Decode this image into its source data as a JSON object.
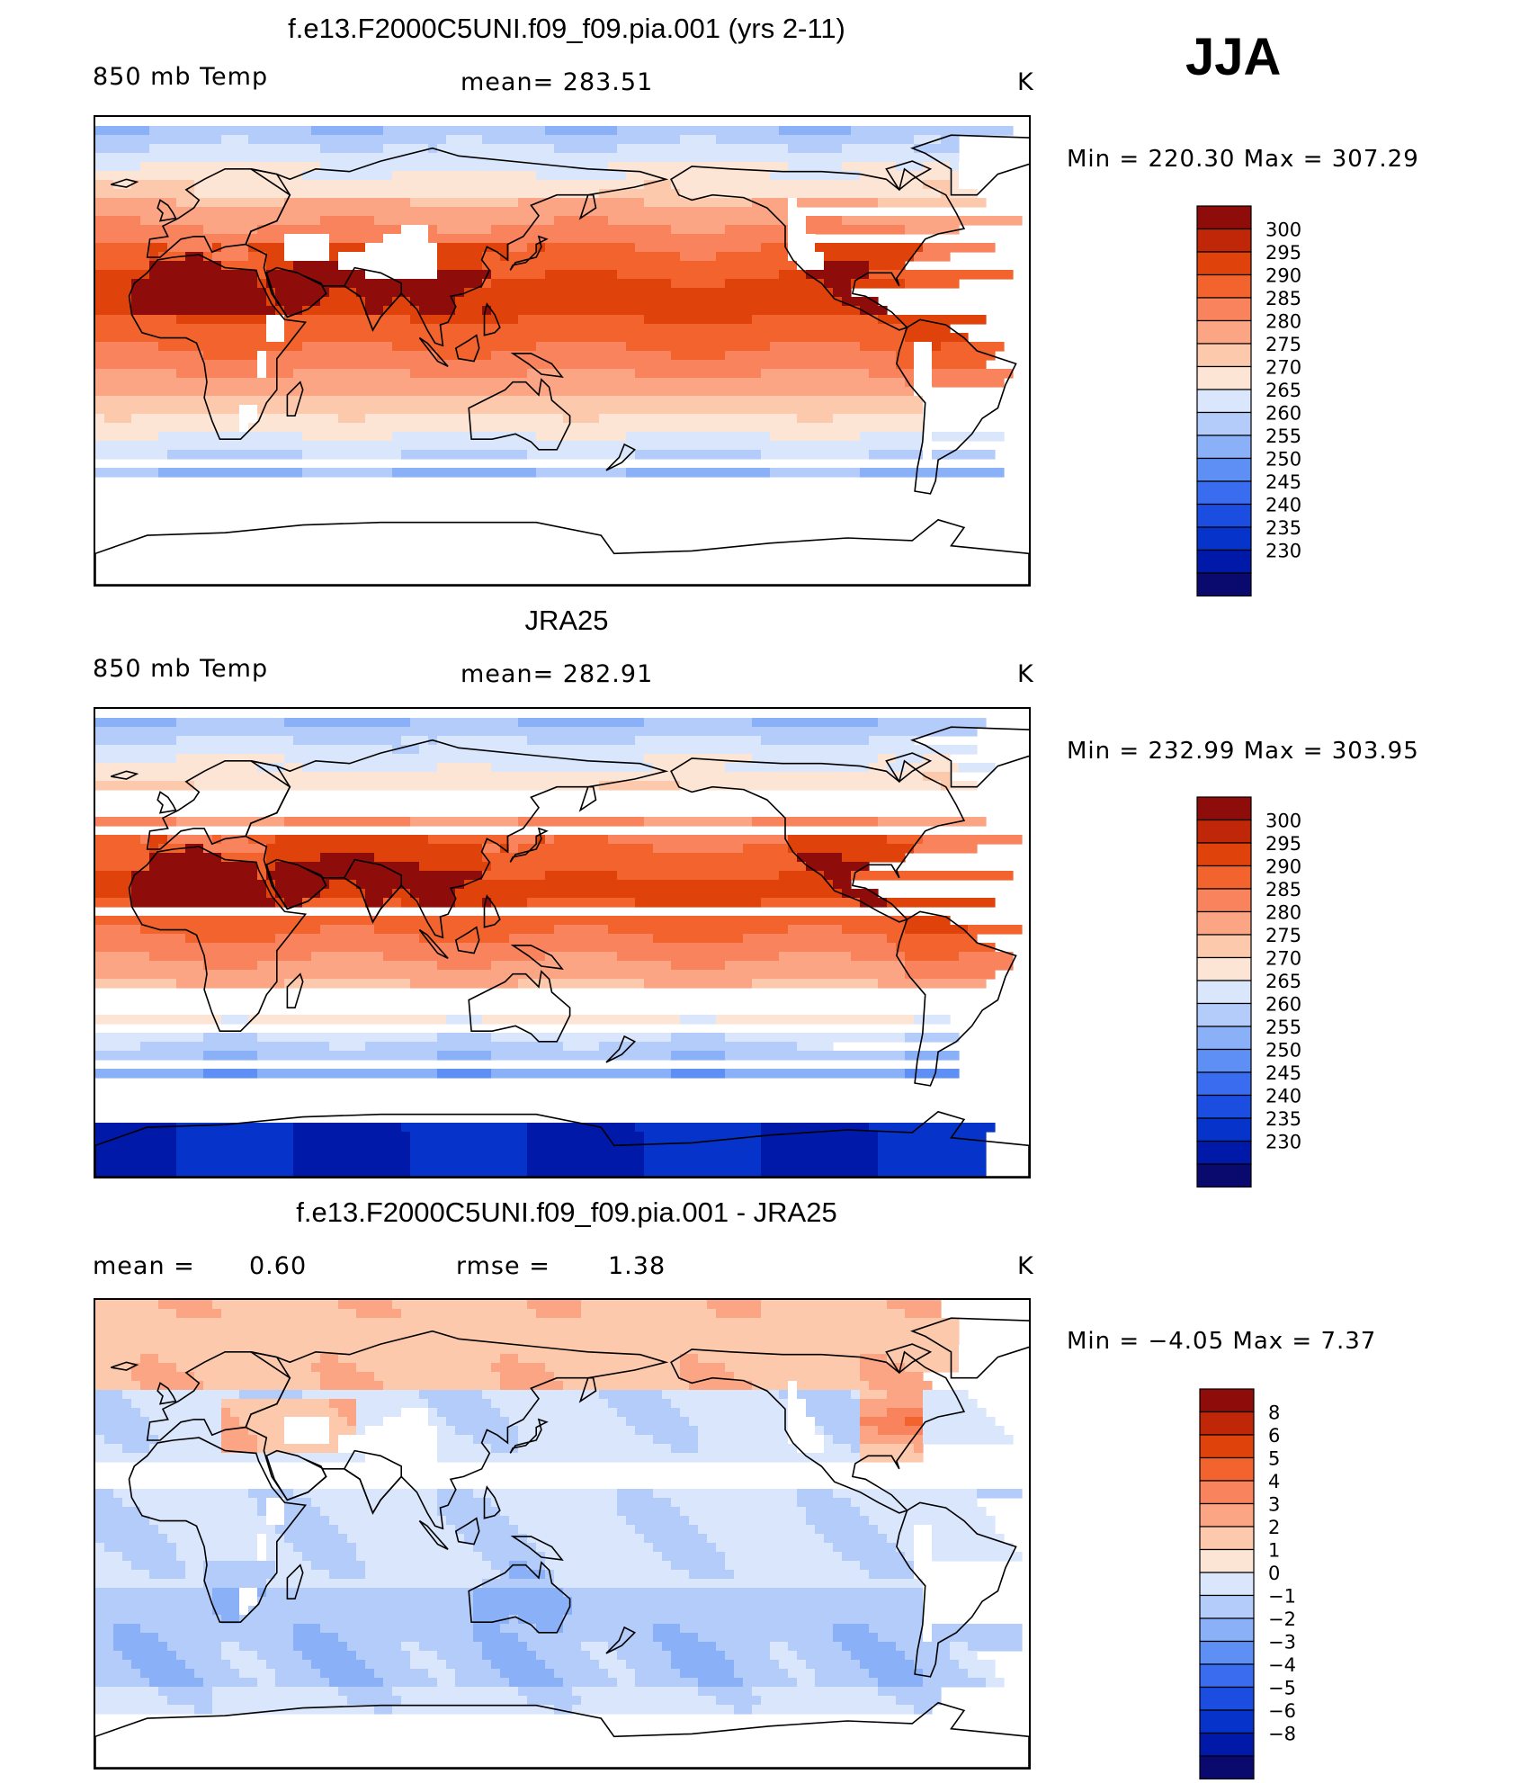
{
  "season": "JJA",
  "colors": {
    "abs": [
      "#0a0a6e",
      "#0019a8",
      "#0633c9",
      "#1a4de0",
      "#3a6cf0",
      "#5e8ff5",
      "#8ab0f7",
      "#b3ccfa",
      "#d9e6fb",
      "#fde5d6",
      "#fcc9ad",
      "#fba585",
      "#f9835c",
      "#f2632e",
      "#e0420c",
      "#bf2708",
      "#8e0c0a"
    ],
    "diff": [
      "#0a0a6e",
      "#0019a8",
      "#0633c9",
      "#1a4de0",
      "#3a6cf0",
      "#5e8ff5",
      "#8ab0f7",
      "#b3ccfa",
      "#d9e6fb",
      "#fde5d6",
      "#fcc9ad",
      "#fba585",
      "#f9835c",
      "#f2632e",
      "#e0420c",
      "#bf2708",
      "#8e0c0a"
    ]
  },
  "chart_data": [
    {
      "type": "heatmap",
      "title": "f.e13.F2000C5UNI.f09_f09.pia.001 (yrs 2-11)",
      "left_label": "850 mb Temp",
      "center_label": "mean=  283.51",
      "right_label": "K",
      "min_max": "Min  =  220.30  Max  =  307.29",
      "colorbar_labels": [
        "300",
        "295",
        "290",
        "285",
        "280",
        "275",
        "270",
        "265",
        "260",
        "255",
        "250",
        "245",
        "240",
        "235",
        "230"
      ],
      "field": {
        "base": 297,
        "amp": 40,
        "pow": 1.35,
        "nh_boost": 4,
        "antarctic_min": 238,
        "masked": true
      }
    },
    {
      "type": "heatmap",
      "title": "JRA25",
      "left_label": "850 mb Temp",
      "center_label": "mean=  282.91",
      "right_label": "K",
      "min_max": "Min  =  232.99  Max  =  303.95",
      "colorbar_labels": [
        "300",
        "295",
        "290",
        "285",
        "280",
        "275",
        "270",
        "265",
        "260",
        "255",
        "250",
        "245",
        "240",
        "235",
        "230"
      ],
      "field": {
        "base": 296,
        "amp": 40,
        "pow": 1.35,
        "nh_boost": 4,
        "antarctic_min": 232,
        "masked": false
      }
    },
    {
      "type": "heatmap",
      "title": "f.e13.F2000C5UNI.f09_f09.pia.001 - JRA25",
      "left_label": "mean =",
      "left_value": "0.60",
      "center_label": "rmse =",
      "center_value": "1.38",
      "right_label": "K",
      "min_max": "Min  =     −4.05  Max  =       7.37",
      "colorbar_labels": [
        "8",
        "6",
        "5",
        "4",
        "3",
        "2",
        "1",
        "0",
        "−1",
        "−2",
        "−3",
        "−4",
        "−5",
        "−6",
        "−8"
      ],
      "field": {
        "mean": 0.6,
        "masked": true
      }
    }
  ]
}
